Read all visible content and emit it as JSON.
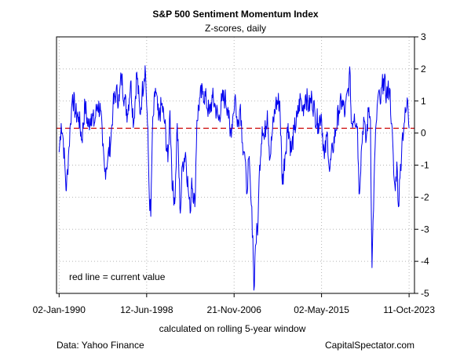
{
  "chart_data": {
    "type": "line",
    "title": "S&P 500 Sentiment Momentum Index",
    "subtitle": "Z-scores, daily",
    "xlabel": "calculated on rolling 5-year window",
    "ylabel": "",
    "ylim": [
      -5,
      3
    ],
    "yticks": [
      3,
      2,
      1,
      0,
      -1,
      -2,
      -3,
      -4,
      -5
    ],
    "xlim": [
      1989.75,
      2024.3
    ],
    "xticks": [
      {
        "label": "02-Jan-1990",
        "t": 1990.0
      },
      {
        "label": "12-Jun-1998",
        "t": 1998.45
      },
      {
        "label": "21-Nov-2006",
        "t": 2006.89
      },
      {
        "label": "02-May-2015",
        "t": 2015.33
      },
      {
        "label": "11-Oct-2023",
        "t": 2023.78
      }
    ],
    "grid": true,
    "reference_line": {
      "value": 0.15,
      "color": "#cc0000",
      "style": "dashed",
      "label": "red line = current value"
    },
    "series": [
      {
        "name": "Z-score",
        "color": "#0000ee",
        "points": [
          [
            1990.0,
            -0.6
          ],
          [
            1990.2,
            0.3
          ],
          [
            1990.4,
            -0.2
          ],
          [
            1990.6,
            -1.3
          ],
          [
            1990.7,
            -1.8
          ],
          [
            1990.9,
            -0.7
          ],
          [
            1991.1,
            0.3
          ],
          [
            1991.3,
            1.2
          ],
          [
            1991.6,
            0.6
          ],
          [
            1991.9,
            0.5
          ],
          [
            1992.2,
            -0.2
          ],
          [
            1992.5,
            0.9
          ],
          [
            1992.8,
            0.2
          ],
          [
            1993.1,
            0.6
          ],
          [
            1993.4,
            0.3
          ],
          [
            1993.7,
            0.9
          ],
          [
            1994.0,
            0.7
          ],
          [
            1994.2,
            -0.4
          ],
          [
            1994.4,
            -1.2
          ],
          [
            1994.7,
            -0.8
          ],
          [
            1995.0,
            -0.2
          ],
          [
            1995.2,
            0.8
          ],
          [
            1995.5,
            1.3
          ],
          [
            1995.8,
            1.0
          ],
          [
            1996.0,
            1.8
          ],
          [
            1996.3,
            1.1
          ],
          [
            1996.6,
            0.6
          ],
          [
            1996.9,
            1.6
          ],
          [
            1997.2,
            0.3
          ],
          [
            1997.5,
            1.9
          ],
          [
            1997.8,
            0.6
          ],
          [
            1998.0,
            1.2
          ],
          [
            1998.3,
            2.1
          ],
          [
            1998.5,
            0.6
          ],
          [
            1998.6,
            -0.5
          ],
          [
            1998.7,
            -1.9
          ],
          [
            1998.85,
            -2.6
          ],
          [
            1999.0,
            0.0
          ],
          [
            1999.3,
            1.4
          ],
          [
            1999.6,
            0.4
          ],
          [
            1999.9,
            0.9
          ],
          [
            2000.2,
            0.3
          ],
          [
            2000.5,
            -0.9
          ],
          [
            2000.7,
            0.7
          ],
          [
            2000.95,
            -1.8
          ],
          [
            2001.2,
            -2.0
          ],
          [
            2001.4,
            0.3
          ],
          [
            2001.7,
            -2.5
          ],
          [
            2001.9,
            -1.0
          ],
          [
            2002.2,
            -0.6
          ],
          [
            2002.5,
            -1.9
          ],
          [
            2002.65,
            -2.5
          ],
          [
            2002.8,
            -1.4
          ],
          [
            2003.1,
            -2.3
          ],
          [
            2003.3,
            0.4
          ],
          [
            2003.6,
            1.1
          ],
          [
            2003.9,
            1.3
          ],
          [
            2004.2,
            1.0
          ],
          [
            2004.5,
            0.6
          ],
          [
            2004.8,
            1.1
          ],
          [
            2005.1,
            0.8
          ],
          [
            2005.4,
            0.4
          ],
          [
            2005.7,
            1.0
          ],
          [
            2006.0,
            1.1
          ],
          [
            2006.3,
            0.8
          ],
          [
            2006.5,
            -0.1
          ],
          [
            2006.8,
            0.6
          ],
          [
            2007.0,
            1.2
          ],
          [
            2007.2,
            0.2
          ],
          [
            2007.5,
            0.9
          ],
          [
            2007.7,
            -0.3
          ],
          [
            2007.9,
            -0.6
          ],
          [
            2008.1,
            -1.9
          ],
          [
            2008.3,
            -0.8
          ],
          [
            2008.5,
            -2.0
          ],
          [
            2008.7,
            -3.2
          ],
          [
            2008.8,
            -4.9
          ],
          [
            2008.95,
            -3.5
          ],
          [
            2009.2,
            -2.8
          ],
          [
            2009.35,
            -1.0
          ],
          [
            2009.6,
            0.2
          ],
          [
            2009.8,
            -0.2
          ],
          [
            2010.1,
            0.7
          ],
          [
            2010.35,
            -0.8
          ],
          [
            2010.6,
            0.1
          ],
          [
            2010.9,
            0.9
          ],
          [
            2011.3,
            1.0
          ],
          [
            2011.55,
            -1.6
          ],
          [
            2011.8,
            -0.7
          ],
          [
            2012.1,
            0.3
          ],
          [
            2012.4,
            -0.6
          ],
          [
            2012.7,
            0.1
          ],
          [
            2013.0,
            0.5
          ],
          [
            2013.3,
            1.1
          ],
          [
            2013.5,
            0.7
          ],
          [
            2013.8,
            1.2
          ],
          [
            2014.1,
            0.8
          ],
          [
            2014.4,
            1.1
          ],
          [
            2014.7,
            0.6
          ],
          [
            2015.0,
            0.3
          ],
          [
            2015.3,
            0.6
          ],
          [
            2015.6,
            -0.8
          ],
          [
            2015.9,
            0.0
          ],
          [
            2016.1,
            -1.2
          ],
          [
            2016.4,
            -0.5
          ],
          [
            2016.7,
            0.1
          ],
          [
            2017.0,
            0.7
          ],
          [
            2017.3,
            1.0
          ],
          [
            2017.6,
            0.6
          ],
          [
            2017.9,
            1.4
          ],
          [
            2018.1,
            1.8
          ],
          [
            2018.2,
            0.3
          ],
          [
            2018.5,
            0.6
          ],
          [
            2018.8,
            0.2
          ],
          [
            2018.95,
            -1.9
          ],
          [
            2019.2,
            -0.4
          ],
          [
            2019.4,
            0.5
          ],
          [
            2019.6,
            -0.3
          ],
          [
            2019.9,
            0.8
          ],
          [
            2020.05,
            0.4
          ],
          [
            2020.2,
            -4.2
          ],
          [
            2020.4,
            -1.5
          ],
          [
            2020.6,
            0.3
          ],
          [
            2020.8,
            1.2
          ],
          [
            2021.0,
            0.9
          ],
          [
            2021.3,
            1.7
          ],
          [
            2021.6,
            1.2
          ],
          [
            2021.9,
            1.4
          ],
          [
            2022.1,
            0.3
          ],
          [
            2022.3,
            -1.3
          ],
          [
            2022.45,
            -1.8
          ],
          [
            2022.6,
            -0.9
          ],
          [
            2022.75,
            -2.3
          ],
          [
            2022.9,
            -1.4
          ],
          [
            2023.1,
            -0.2
          ],
          [
            2023.3,
            0.3
          ],
          [
            2023.5,
            0.7
          ],
          [
            2023.65,
            1.0
          ],
          [
            2023.78,
            0.15
          ]
        ]
      }
    ]
  },
  "annotations": {
    "current_value_note": "red line = current value",
    "source": "Data: Yahoo Finance",
    "brand": "CapitalSpectator.com"
  }
}
